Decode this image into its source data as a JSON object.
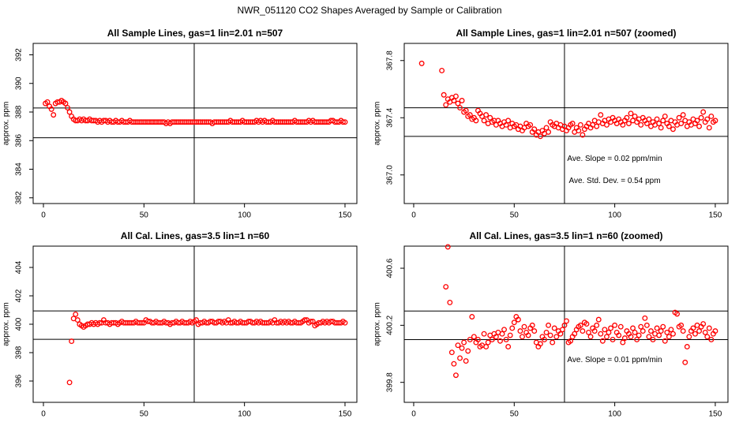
{
  "title": "NWR_051120  CO2 Shapes Averaged by Sample or Calibration",
  "chart_data": [
    {
      "type": "scatter",
      "title": "All Sample Lines, gas=1 lin=2.01 n=507",
      "y_label": "approx. ppm",
      "color": "#ff0000",
      "xlim": [
        -5.1,
        155.9
      ],
      "ylim": [
        381.6,
        392.8
      ],
      "xticks": [
        0,
        50,
        100,
        150
      ],
      "yticks": [
        382,
        384,
        386,
        388,
        390,
        392
      ],
      "hlines": [
        388.28,
        386.2
      ],
      "vline": 75,
      "x": [
        1,
        2,
        3,
        4,
        5,
        6,
        7,
        8,
        9,
        10,
        11,
        12,
        13,
        14,
        15,
        16,
        17,
        18,
        19,
        20,
        21,
        22,
        23,
        24,
        25,
        26,
        27,
        28,
        29,
        30,
        31,
        32,
        33,
        34,
        35,
        36,
        37,
        38,
        39,
        40,
        41,
        42,
        43,
        44,
        45,
        46,
        47,
        48,
        49,
        50,
        51,
        52,
        53,
        54,
        55,
        56,
        57,
        58,
        59,
        60,
        61,
        62,
        63,
        64,
        65,
        66,
        67,
        68,
        69,
        70,
        71,
        72,
        73,
        74,
        75,
        76,
        77,
        78,
        79,
        80,
        81,
        82,
        83,
        84,
        85,
        86,
        87,
        88,
        89,
        90,
        91,
        92,
        93,
        94,
        95,
        96,
        97,
        98,
        99,
        100,
        101,
        102,
        103,
        104,
        105,
        106,
        107,
        108,
        109,
        110,
        111,
        112,
        113,
        114,
        115,
        116,
        117,
        118,
        119,
        120,
        121,
        122,
        123,
        124,
        125,
        126,
        127,
        128,
        129,
        130,
        131,
        132,
        133,
        134,
        135,
        136,
        137,
        138,
        139,
        140,
        141,
        142,
        143,
        144,
        145,
        146,
        147,
        148,
        149,
        150
      ],
      "values": [
        388.6,
        388.7,
        388.4,
        388.2,
        387.8,
        388.6,
        388.7,
        388.7,
        388.8,
        388.7,
        388.6,
        388.3,
        388.0,
        387.7,
        387.5,
        387.4,
        387.4,
        387.5,
        387.4,
        387.5,
        387.4,
        387.4,
        387.5,
        387.4,
        387.4,
        387.4,
        387.3,
        387.4,
        387.3,
        387.4,
        387.4,
        387.3,
        387.4,
        387.3,
        387.3,
        387.4,
        387.3,
        387.3,
        387.4,
        387.3,
        387.3,
        387.3,
        387.4,
        387.3,
        387.3,
        387.3,
        387.3,
        387.3,
        387.3,
        387.3,
        387.3,
        387.3,
        387.3,
        387.3,
        387.3,
        387.3,
        387.3,
        387.3,
        387.3,
        387.3,
        387.2,
        387.3,
        387.2,
        387.3,
        387.3,
        387.3,
        387.3,
        387.3,
        387.3,
        387.3,
        387.3,
        387.3,
        387.3,
        387.3,
        387.3,
        387.3,
        387.3,
        387.3,
        387.3,
        387.3,
        387.3,
        387.3,
        387.3,
        387.2,
        387.3,
        387.3,
        387.3,
        387.3,
        387.3,
        387.3,
        387.3,
        387.3,
        387.4,
        387.3,
        387.3,
        387.3,
        387.3,
        387.3,
        387.4,
        387.3,
        387.3,
        387.3,
        387.3,
        387.3,
        387.3,
        387.4,
        387.3,
        387.4,
        387.3,
        387.4,
        387.3,
        387.3,
        387.3,
        387.4,
        387.3,
        387.3,
        387.3,
        387.3,
        387.3,
        387.3,
        387.3,
        387.3,
        387.3,
        387.3,
        387.4,
        387.3,
        387.3,
        387.3,
        387.3,
        387.3,
        387.3,
        387.4,
        387.3,
        387.4,
        387.3,
        387.3,
        387.3,
        387.3,
        387.3,
        387.3,
        387.3,
        387.3,
        387.4,
        387.4,
        387.3,
        387.3,
        387.3,
        387.4,
        387.3,
        387.3
      ]
    },
    {
      "type": "scatter",
      "title": "All Sample Lines, gas=1 lin=2.01 n=507 (zoomed)",
      "y_label": "approx. ppm",
      "color": "#ff0000",
      "xlim": [
        -4.7,
        156.3
      ],
      "ylim": [
        366.8,
        367.92
      ],
      "xticks": [
        0,
        50,
        100,
        150
      ],
      "yticks": [
        {
          "value": 367,
          "label": "367.0"
        },
        367.4,
        367.8
      ],
      "hlines": [
        367.47,
        367.27
      ],
      "vline": 75,
      "annotations": [
        "Ave. Slope =  0.02  ppm/min",
        "Ave. Std. Dev. =  0.54  ppm"
      ],
      "x": [
        1,
        2,
        3,
        4,
        5,
        6,
        7,
        8,
        9,
        10,
        11,
        12,
        13,
        14,
        15,
        16,
        17,
        18,
        19,
        20,
        21,
        22,
        23,
        24,
        25,
        26,
        27,
        28,
        29,
        30,
        31,
        32,
        33,
        34,
        35,
        36,
        37,
        38,
        39,
        40,
        41,
        42,
        43,
        44,
        45,
        46,
        47,
        48,
        49,
        50,
        51,
        52,
        53,
        54,
        55,
        56,
        57,
        58,
        59,
        60,
        61,
        62,
        63,
        64,
        65,
        66,
        67,
        68,
        69,
        70,
        71,
        72,
        73,
        74,
        75,
        76,
        77,
        78,
        79,
        80,
        81,
        82,
        83,
        84,
        85,
        86,
        87,
        88,
        89,
        90,
        91,
        92,
        93,
        94,
        95,
        96,
        97,
        98,
        99,
        100,
        101,
        102,
        103,
        104,
        105,
        106,
        107,
        108,
        109,
        110,
        111,
        112,
        113,
        114,
        115,
        116,
        117,
        118,
        119,
        120,
        121,
        122,
        123,
        124,
        125,
        126,
        127,
        128,
        129,
        130,
        131,
        132,
        133,
        134,
        135,
        136,
        137,
        138,
        139,
        140,
        141,
        142,
        143,
        144,
        145,
        146,
        147,
        148,
        149,
        150
      ],
      "values": [
        null,
        null,
        null,
        367.78,
        null,
        null,
        null,
        null,
        null,
        null,
        null,
        null,
        null,
        367.73,
        367.56,
        367.49,
        367.53,
        367.51,
        367.54,
        367.52,
        367.55,
        367.5,
        367.47,
        367.52,
        367.44,
        367.45,
        367.41,
        367.42,
        367.39,
        367.4,
        367.38,
        367.45,
        367.43,
        367.41,
        367.38,
        367.42,
        367.36,
        367.4,
        367.37,
        367.38,
        367.35,
        367.38,
        367.36,
        367.34,
        367.37,
        367.35,
        367.38,
        367.33,
        367.36,
        367.34,
        367.35,
        367.32,
        367.34,
        367.31,
        367.33,
        367.36,
        367.34,
        367.35,
        367.3,
        367.32,
        367.28,
        367.3,
        367.27,
        367.31,
        367.29,
        367.33,
        367.3,
        367.37,
        367.35,
        367.34,
        367.36,
        367.33,
        367.35,
        367.32,
        367.34,
        367.31,
        367.33,
        367.35,
        367.36,
        367.3,
        367.33,
        367.31,
        367.35,
        367.28,
        367.32,
        367.34,
        367.36,
        367.33,
        367.35,
        367.38,
        367.34,
        367.37,
        367.42,
        367.36,
        367.38,
        367.35,
        367.39,
        367.37,
        367.4,
        367.38,
        367.36,
        367.39,
        367.37,
        367.35,
        367.38,
        367.4,
        367.36,
        367.43,
        367.38,
        367.41,
        367.37,
        367.39,
        367.35,
        367.4,
        367.38,
        367.36,
        367.39,
        367.34,
        367.37,
        367.35,
        367.39,
        367.36,
        367.33,
        367.38,
        367.41,
        367.36,
        367.34,
        367.38,
        367.32,
        367.37,
        367.35,
        367.4,
        367.36,
        367.42,
        367.38,
        367.34,
        367.37,
        367.35,
        367.39,
        367.36,
        367.38,
        367.34,
        367.4,
        367.44,
        367.37,
        367.39,
        367.33,
        367.41,
        367.37,
        367.38
      ]
    },
    {
      "type": "scatter",
      "title": "All Cal. Lines, gas=3.5 lin=1 n=60",
      "y_label": "approx. ppm",
      "color": "#ff0000",
      "xlim": [
        -5.1,
        155.9
      ],
      "ylim": [
        394.5,
        405.5
      ],
      "xticks": [
        0,
        50,
        100,
        150
      ],
      "yticks": [
        396,
        398,
        400,
        402,
        404
      ],
      "hlines": [
        400.94,
        398.94
      ],
      "vline": 75,
      "x": [
        1,
        2,
        3,
        4,
        5,
        6,
        7,
        8,
        9,
        10,
        11,
        12,
        13,
        14,
        15,
        16,
        17,
        18,
        19,
        20,
        21,
        22,
        23,
        24,
        25,
        26,
        27,
        28,
        29,
        30,
        31,
        32,
        33,
        34,
        35,
        36,
        37,
        38,
        39,
        40,
        41,
        42,
        43,
        44,
        45,
        46,
        47,
        48,
        49,
        50,
        51,
        52,
        53,
        54,
        55,
        56,
        57,
        58,
        59,
        60,
        61,
        62,
        63,
        64,
        65,
        66,
        67,
        68,
        69,
        70,
        71,
        72,
        73,
        74,
        75,
        76,
        77,
        78,
        79,
        80,
        81,
        82,
        83,
        84,
        85,
        86,
        87,
        88,
        89,
        90,
        91,
        92,
        93,
        94,
        95,
        96,
        97,
        98,
        99,
        100,
        101,
        102,
        103,
        104,
        105,
        106,
        107,
        108,
        109,
        110,
        111,
        112,
        113,
        114,
        115,
        116,
        117,
        118,
        119,
        120,
        121,
        122,
        123,
        124,
        125,
        126,
        127,
        128,
        129,
        130,
        131,
        132,
        133,
        134,
        135,
        136,
        137,
        138,
        139,
        140,
        141,
        142,
        143,
        144,
        145,
        146,
        147,
        148,
        149,
        150
      ],
      "values": [
        null,
        null,
        null,
        null,
        null,
        null,
        null,
        null,
        null,
        null,
        null,
        null,
        395.9,
        398.8,
        400.4,
        400.7,
        400.3,
        400.0,
        399.9,
        399.8,
        399.9,
        400.0,
        400.0,
        400.1,
        400.0,
        400.1,
        400.0,
        400.1,
        400.1,
        400.3,
        400.1,
        400.1,
        400.0,
        400.1,
        400.1,
        400.1,
        400.0,
        400.1,
        400.2,
        400.1,
        400.1,
        400.1,
        400.1,
        400.1,
        400.1,
        400.2,
        400.1,
        400.1,
        400.1,
        400.1,
        400.3,
        400.2,
        400.2,
        400.1,
        400.1,
        400.2,
        400.1,
        400.1,
        400.1,
        400.2,
        400.1,
        400.1,
        400.0,
        400.1,
        400.1,
        400.2,
        400.1,
        400.1,
        400.2,
        400.1,
        400.1,
        400.1,
        400.2,
        400.1,
        400.2,
        400.3,
        400.0,
        400.1,
        400.1,
        400.2,
        400.1,
        400.1,
        400.2,
        400.2,
        400.1,
        400.1,
        400.2,
        400.2,
        400.1,
        400.2,
        400.1,
        400.3,
        400.1,
        400.1,
        400.2,
        400.1,
        400.1,
        400.2,
        400.1,
        400.1,
        400.1,
        400.2,
        400.2,
        400.1,
        400.1,
        400.2,
        400.1,
        400.2,
        400.1,
        400.1,
        400.1,
        400.1,
        400.2,
        400.1,
        400.3,
        400.1,
        400.1,
        400.2,
        400.1,
        400.2,
        400.1,
        400.2,
        400.1,
        400.1,
        400.2,
        400.1,
        400.1,
        400.1,
        400.2,
        400.3,
        400.3,
        400.1,
        400.2,
        400.2,
        399.9,
        400.0,
        400.1,
        400.1,
        400.2,
        400.1,
        400.2,
        400.1,
        400.2,
        400.2,
        400.1,
        400.1,
        400.1,
        400.1,
        400.2,
        400.1
      ]
    },
    {
      "type": "scatter",
      "title": "All Cal. Lines, gas=3.5 lin=1 n=60 (zoomed)",
      "y_label": "approx. ppm",
      "color": "#ff0000",
      "xlim": [
        -4.7,
        156.3
      ],
      "ylim": [
        399.66,
        400.755
      ],
      "xticks": [
        0,
        50,
        100,
        150
      ],
      "yticks": [
        399.8,
        400.2,
        400.6
      ],
      "hlines": [
        400.3,
        400.1
      ],
      "vline": 75,
      "annotations": [
        "Ave. Slope =  0.01  ppm/min"
      ],
      "x": [
        1,
        2,
        3,
        4,
        5,
        6,
        7,
        8,
        9,
        10,
        11,
        12,
        13,
        14,
        15,
        16,
        17,
        18,
        19,
        20,
        21,
        22,
        23,
        24,
        25,
        26,
        27,
        28,
        29,
        30,
        31,
        32,
        33,
        34,
        35,
        36,
        37,
        38,
        39,
        40,
        41,
        42,
        43,
        44,
        45,
        46,
        47,
        48,
        49,
        50,
        51,
        52,
        53,
        54,
        55,
        56,
        57,
        58,
        59,
        60,
        61,
        62,
        63,
        64,
        65,
        66,
        67,
        68,
        69,
        70,
        71,
        72,
        73,
        74,
        75,
        76,
        77,
        78,
        79,
        80,
        81,
        82,
        83,
        84,
        85,
        86,
        87,
        88,
        89,
        90,
        91,
        92,
        93,
        94,
        95,
        96,
        97,
        98,
        99,
        100,
        101,
        102,
        103,
        104,
        105,
        106,
        107,
        108,
        109,
        110,
        111,
        112,
        113,
        114,
        115,
        116,
        117,
        118,
        119,
        120,
        121,
        122,
        123,
        124,
        125,
        126,
        127,
        128,
        129,
        130,
        131,
        132,
        133,
        134,
        135,
        136,
        137,
        138,
        139,
        140,
        141,
        142,
        143,
        144,
        145,
        146,
        147,
        148,
        149,
        150
      ],
      "values": [
        null,
        null,
        null,
        null,
        null,
        null,
        null,
        null,
        null,
        null,
        null,
        null,
        null,
        null,
        null,
        400.47,
        400.75,
        400.36,
        400.01,
        399.93,
        399.85,
        400.06,
        399.97,
        400.04,
        400.08,
        399.95,
        400.02,
        400.1,
        400.26,
        400.12,
        400.08,
        400.1,
        400.05,
        400.06,
        400.14,
        400.05,
        400.08,
        400.13,
        400.1,
        400.14,
        400.12,
        400.15,
        400.09,
        400.14,
        400.17,
        400.1,
        400.05,
        400.13,
        400.18,
        400.22,
        400.26,
        400.24,
        400.16,
        400.12,
        400.19,
        400.15,
        400.13,
        400.18,
        400.2,
        400.16,
        400.08,
        400.05,
        400.07,
        400.12,
        400.1,
        400.15,
        400.2,
        400.13,
        400.08,
        400.18,
        400.12,
        400.16,
        400.14,
        400.17,
        400.2,
        400.23,
        400.08,
        400.09,
        400.12,
        400.14,
        400.17,
        400.19,
        400.2,
        400.16,
        400.22,
        400.21,
        400.15,
        400.12,
        400.18,
        400.16,
        400.2,
        400.24,
        400.14,
        400.09,
        400.17,
        400.12,
        400.15,
        400.18,
        400.1,
        400.2,
        400.15,
        400.13,
        400.19,
        400.08,
        400.11,
        400.16,
        400.14,
        400.12,
        400.18,
        400.15,
        400.1,
        400.13,
        400.19,
        400.16,
        400.25,
        400.2,
        400.12,
        400.16,
        400.1,
        400.14,
        400.18,
        400.13,
        400.16,
        400.19,
        400.09,
        400.15,
        400.12,
        400.17,
        400.14,
        400.29,
        400.28,
        400.19,
        400.2,
        400.16,
        399.94,
        400.05,
        400.12,
        400.16,
        400.18,
        400.14,
        400.2,
        400.16,
        400.19,
        400.21,
        400.15,
        400.12,
        400.18,
        400.1,
        400.14,
        400.16
      ]
    }
  ]
}
